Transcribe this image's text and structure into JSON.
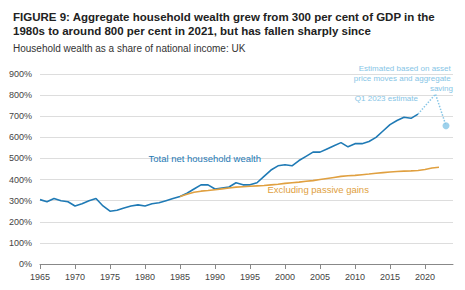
{
  "chart_data": {
    "type": "line",
    "title": "FIGURE 9: Aggregate household wealth grew from 300 per cent of GDP in the 1980s to around 800 per cent in 2021, but has fallen sharply since",
    "subtitle": "Household wealth as a share of national income: UK",
    "xlim": [
      1965,
      2024
    ],
    "xticks": [
      1965,
      1970,
      1975,
      1980,
      1985,
      1990,
      1995,
      2000,
      2005,
      2010,
      2015,
      2020
    ],
    "ylim": [
      0,
      900
    ],
    "yticks": [
      {
        "value": 0,
        "label": "0%"
      },
      {
        "value": 100,
        "label": "100%"
      },
      {
        "value": 200,
        "label": "200%"
      },
      {
        "value": 300,
        "label": "300%"
      },
      {
        "value": 400,
        "label": "400%"
      },
      {
        "value": 500,
        "label": "500%"
      },
      {
        "value": 600,
        "label": "600%"
      },
      {
        "value": 700,
        "label": "700%"
      },
      {
        "value": 800,
        "label": "800%"
      },
      {
        "value": 900,
        "label": "900%"
      }
    ],
    "grid": true,
    "series": [
      {
        "name": "Total net household wealth",
        "color": "#1f7ab5",
        "type": "line",
        "marker": "none",
        "line_style": "solid",
        "x": [
          1965,
          1966,
          1967,
          1968,
          1969,
          1970,
          1971,
          1972,
          1973,
          1974,
          1975,
          1976,
          1977,
          1978,
          1979,
          1980,
          1981,
          1982,
          1983,
          1984,
          1985,
          1986,
          1987,
          1988,
          1989,
          1990,
          1991,
          1992,
          1993,
          1994,
          1995,
          1996,
          1997,
          1998,
          1999,
          2000,
          2001,
          2002,
          2003,
          2004,
          2005,
          2006,
          2007,
          2008,
          2009,
          2010,
          2011,
          2012,
          2013,
          2014,
          2015,
          2016,
          2017,
          2018,
          2019
        ],
        "values": [
          305,
          295,
          310,
          300,
          295,
          275,
          285,
          300,
          310,
          275,
          250,
          255,
          265,
          275,
          280,
          275,
          285,
          290,
          300,
          310,
          320,
          335,
          355,
          375,
          375,
          355,
          360,
          365,
          385,
          375,
          375,
          385,
          415,
          445,
          465,
          470,
          465,
          490,
          510,
          530,
          530,
          545,
          560,
          575,
          555,
          570,
          570,
          580,
          600,
          630,
          660,
          680,
          695,
          690,
          710
        ]
      },
      {
        "name": "Excluding passive gains",
        "color": "#e0a040",
        "type": "line",
        "marker": "none",
        "line_style": "solid",
        "x": [
          1985,
          1986,
          1987,
          1988,
          1989,
          1990,
          1991,
          1992,
          1993,
          1994,
          1995,
          1996,
          1997,
          1998,
          1999,
          2000,
          2001,
          2002,
          2003,
          2004,
          2005,
          2006,
          2007,
          2008,
          2009,
          2010,
          2011,
          2012,
          2013,
          2014,
          2015,
          2016,
          2017,
          2018,
          2019,
          2020,
          2021,
          2022
        ],
        "values": [
          320,
          330,
          340,
          345,
          348,
          352,
          356,
          360,
          364,
          366,
          368,
          370,
          372,
          375,
          378,
          382,
          385,
          388,
          392,
          395,
          400,
          405,
          410,
          415,
          418,
          420,
          423,
          426,
          430,
          433,
          436,
          438,
          440,
          441,
          443,
          448,
          455,
          458
        ]
      },
      {
        "name": "Estimated based on asset price moves and aggregate saving",
        "color": "#86c5e6",
        "type": "line",
        "marker": "none",
        "line_style": "dotted",
        "x": [
          2019,
          2021.5,
          2023
        ],
        "values": [
          710,
          805,
          655
        ]
      },
      {
        "name": "Q1 2023 estimate",
        "color": "#86c5e6",
        "type": "scatter",
        "marker": "circle",
        "x": [
          2023
        ],
        "values": [
          655
        ]
      }
    ]
  }
}
